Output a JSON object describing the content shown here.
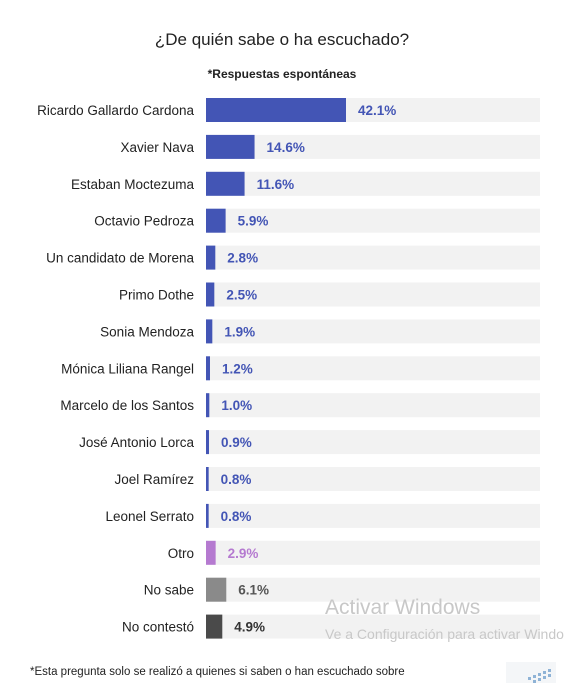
{
  "chart_data": {
    "type": "bar",
    "orientation": "horizontal",
    "title": "¿De quién sabe o ha escuchado?",
    "subtitle": "*Respuestas espontáneas",
    "categories": [
      "Ricardo Gallardo Cardona",
      "Xavier Nava",
      "Estaban Moctezuma",
      "Octavio Pedroza",
      "Un candidato de Morena",
      "Primo Dothe",
      "Sonia Mendoza",
      "Mónica Liliana Rangel",
      "Marcelo de los Santos",
      "José Antonio Lorca",
      "Joel Ramírez",
      "Leonel Serrato",
      "Otro",
      "No sabe",
      "No contestó"
    ],
    "values": [
      42.1,
      14.6,
      11.6,
      5.9,
      2.8,
      2.5,
      1.9,
      1.2,
      1.0,
      0.9,
      0.8,
      0.8,
      2.9,
      6.1,
      4.9
    ],
    "value_labels": [
      "42.1%",
      "14.6%",
      "11.6%",
      "5.9%",
      "2.8%",
      "2.5%",
      "1.9%",
      "1.2%",
      "1.0%",
      "0.9%",
      "0.8%",
      "0.8%",
      "2.9%",
      "6.1%",
      "4.9%"
    ],
    "bar_colors": [
      "#4355b5",
      "#4355b5",
      "#4355b5",
      "#4355b5",
      "#4355b5",
      "#4355b5",
      "#4355b5",
      "#4355b5",
      "#4355b5",
      "#4355b5",
      "#4355b5",
      "#4355b5",
      "#b57ad0",
      "#8a8a8a",
      "#4a4a4a"
    ],
    "label_colors": [
      "#4355b5",
      "#4355b5",
      "#4355b5",
      "#4355b5",
      "#4355b5",
      "#4355b5",
      "#4355b5",
      "#4355b5",
      "#4355b5",
      "#4355b5",
      "#4355b5",
      "#4355b5",
      "#b57ad0",
      "#555555",
      "#333333"
    ],
    "track_color": "#f2f2f2",
    "xlim": [
      0,
      100
    ],
    "grid": false,
    "legend": "none"
  },
  "footnote": "*Esta pregunta solo se realizó a quienes si saben o han escuchado sobre",
  "watermark": {
    "title": "Activar Windows",
    "subtitle": "Ve a Configuración para activar Windows."
  }
}
